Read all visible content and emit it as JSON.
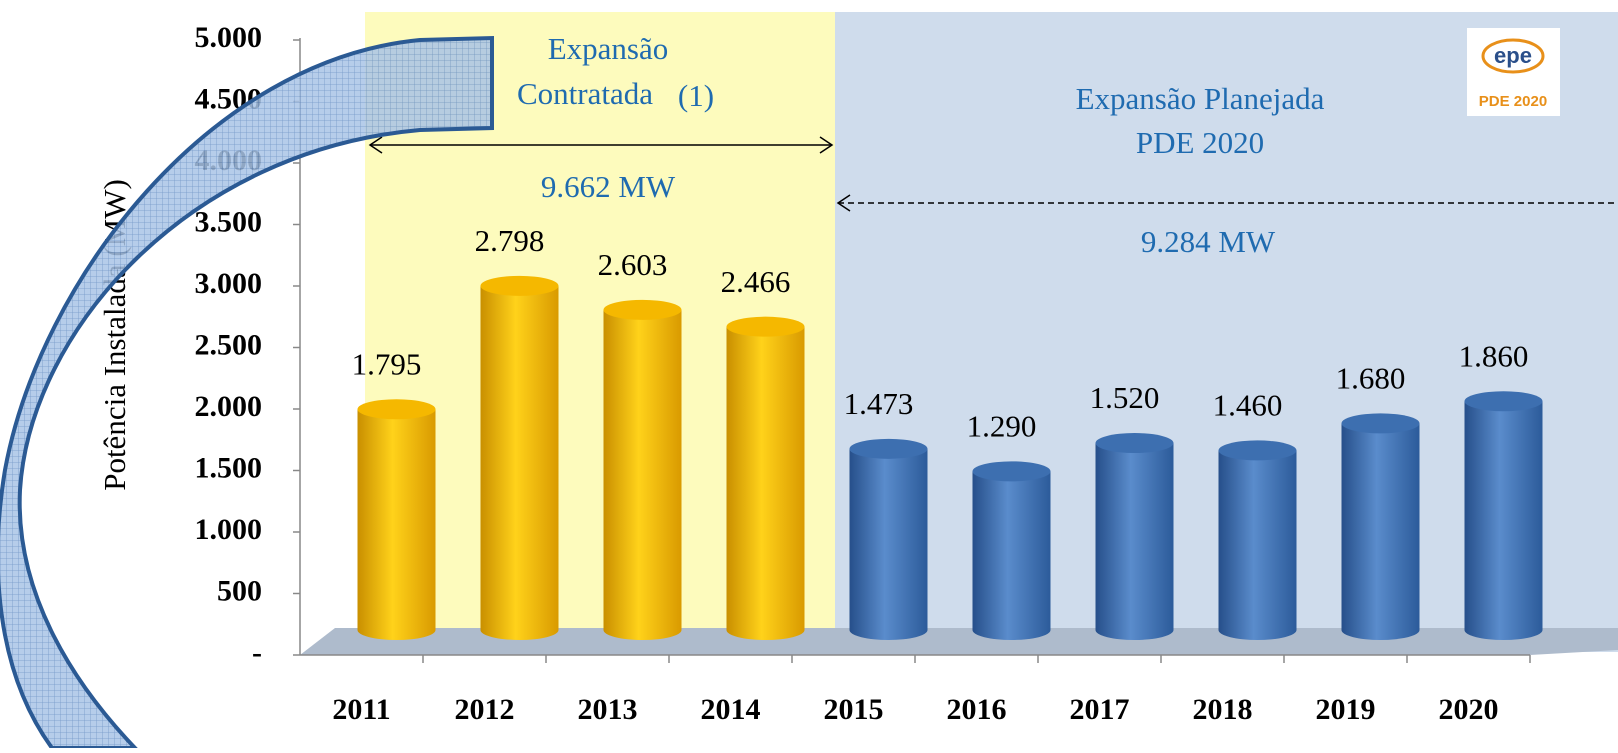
{
  "chart_data": {
    "type": "bar",
    "y_axis_label": "Potência Instalada (MW)",
    "categories": [
      "2011",
      "2012",
      "2013",
      "2014",
      "2015",
      "2016",
      "2017",
      "2018",
      "2019",
      "2020"
    ],
    "values": [
      1795,
      2798,
      2603,
      2466,
      1473,
      1290,
      1520,
      1460,
      1680,
      1860
    ],
    "value_labels": [
      "1.795",
      "2.798",
      "2.603",
      "2.466",
      "1.473",
      "1.290",
      "1.520",
      "1.460",
      "1.680",
      "1.860"
    ],
    "colors": [
      "#f5b800",
      "#f5b800",
      "#f5b800",
      "#f5b800",
      "#3d6fb0",
      "#3d6fb0",
      "#3d6fb0",
      "#3d6fb0",
      "#3d6fb0",
      "#3d6fb0"
    ],
    "ylim": [
      0,
      5000
    ],
    "yticks": [
      {
        "value": 0,
        "label": "-"
      },
      500,
      {
        "value": 1000,
        "label": "1.000"
      },
      {
        "value": 1500,
        "label": "1.500"
      },
      {
        "value": 2000,
        "label": "2.000"
      },
      {
        "value": 2500,
        "label": "2.500"
      },
      {
        "value": 3000,
        "label": "3.000"
      },
      {
        "value": 3500,
        "label": "3.500"
      },
      {
        "value": 4000,
        "label": "4.000"
      },
      {
        "value": 4500,
        "label": "4.500"
      },
      {
        "value": 5000,
        "label": "5.000"
      }
    ],
    "annotations": {
      "contracted": {
        "line1": "Expansão",
        "line2": "Contratada",
        "note": "(1)",
        "total": "9.662 MW"
      },
      "planned": {
        "line1": "Expansão Planejada",
        "line2": "PDE 2020",
        "total": "9.284 MW"
      }
    },
    "logo": {
      "name": "epe",
      "plan": "PDE 2020"
    }
  }
}
